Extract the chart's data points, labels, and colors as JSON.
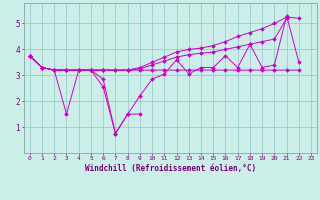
{
  "xlabel": "Windchill (Refroidissement éolien,°C)",
  "bg_color": "#cceee8",
  "line_color": "#cc00cc",
  "grid_color": "#99cccc",
  "xlim": [
    -0.5,
    23.5
  ],
  "ylim": [
    0,
    5.8
  ],
  "yticks": [
    1,
    2,
    3,
    4,
    5
  ],
  "xticks": [
    0,
    1,
    2,
    3,
    4,
    5,
    6,
    7,
    8,
    9,
    10,
    11,
    12,
    13,
    14,
    15,
    16,
    17,
    18,
    19,
    20,
    21,
    22,
    23
  ],
  "lines": [
    {
      "x": [
        0,
        1,
        2,
        3,
        4,
        5,
        6,
        7,
        8,
        9,
        10,
        11,
        12,
        13,
        14,
        15,
        16,
        17,
        18,
        19,
        20,
        21,
        22
      ],
      "y": [
        3.75,
        3.3,
        3.2,
        3.2,
        3.2,
        3.2,
        2.85,
        0.75,
        1.5,
        2.2,
        2.85,
        3.05,
        3.6,
        3.05,
        3.3,
        3.3,
        3.75,
        3.3,
        4.2,
        3.3,
        3.4,
        5.3,
        3.5
      ]
    },
    {
      "x": [
        0,
        1,
        2,
        3,
        4,
        5,
        6,
        7,
        8,
        9,
        10,
        11,
        12,
        13,
        14,
        15,
        16,
        17,
        18,
        19,
        20,
        21,
        22
      ],
      "y": [
        3.75,
        3.3,
        3.2,
        3.2,
        3.2,
        3.2,
        3.2,
        3.2,
        3.2,
        3.2,
        3.2,
        3.2,
        3.2,
        3.2,
        3.2,
        3.2,
        3.2,
        3.2,
        3.2,
        3.2,
        3.2,
        3.2,
        3.2
      ]
    },
    {
      "x": [
        0,
        1,
        2,
        3,
        4,
        5,
        6,
        7,
        8,
        9,
        10,
        11,
        12,
        13,
        14,
        15,
        16,
        17,
        18,
        19,
        20,
        21
      ],
      "y": [
        3.75,
        3.3,
        3.2,
        3.2,
        3.2,
        3.2,
        3.2,
        3.2,
        3.2,
        3.25,
        3.4,
        3.55,
        3.7,
        3.8,
        3.85,
        3.9,
        4.0,
        4.1,
        4.2,
        4.3,
        4.4,
        5.2
      ]
    },
    {
      "x": [
        0,
        1,
        2,
        3,
        4,
        5,
        6,
        7,
        8,
        9,
        10,
        11,
        12,
        13,
        14,
        15,
        16,
        17,
        18,
        19,
        20,
        21,
        22
      ],
      "y": [
        3.75,
        3.3,
        3.2,
        3.2,
        3.2,
        3.2,
        3.2,
        3.2,
        3.2,
        3.3,
        3.5,
        3.7,
        3.9,
        4.0,
        4.05,
        4.15,
        4.3,
        4.5,
        4.65,
        4.8,
        5.0,
        5.25,
        5.2
      ]
    },
    {
      "x": [
        0,
        1,
        2,
        3,
        4,
        5,
        6,
        7,
        8,
        9
      ],
      "y": [
        3.75,
        3.3,
        3.2,
        1.5,
        3.2,
        3.2,
        2.55,
        0.75,
        1.5,
        1.5
      ]
    }
  ]
}
